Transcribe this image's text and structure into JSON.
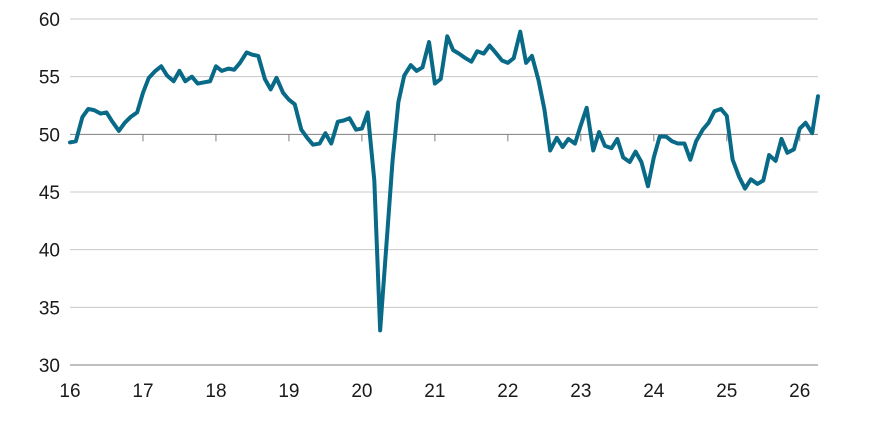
{
  "chart_data": {
    "type": "line",
    "title": "",
    "xlabel": "",
    "ylabel": "",
    "ylim": [
      30,
      60
    ],
    "xlim": [
      16,
      26.25
    ],
    "grid": "horizontal",
    "yticks": [
      30,
      35,
      40,
      45,
      50,
      55,
      60
    ],
    "xticks": [
      16,
      17,
      18,
      19,
      20,
      21,
      22,
      23,
      24,
      25,
      26
    ],
    "ytick_labels": [
      "30",
      "35",
      "40",
      "45",
      "50",
      "55",
      "60"
    ],
    "xtick_labels": [
      "16",
      "17",
      "18",
      "19",
      "20",
      "21",
      "22",
      "23",
      "24",
      "25",
      "26"
    ],
    "reference_line": 50,
    "colors": {
      "series": "#086a87",
      "grid": "#c8c8c8",
      "axis": "#7f7f7f"
    },
    "series": [
      {
        "x": [
          16.0,
          16.08,
          16.17,
          16.25,
          16.33,
          16.42,
          16.5,
          16.58,
          16.67,
          16.75,
          16.83,
          16.92,
          17.0,
          17.08,
          17.17,
          17.25,
          17.33,
          17.42,
          17.5,
          17.58,
          17.67,
          17.75,
          17.83,
          17.92,
          18.0,
          18.08,
          18.17,
          18.25,
          18.33,
          18.42,
          18.5,
          18.58,
          18.67,
          18.75,
          18.83,
          18.92,
          19.0,
          19.08,
          19.17,
          19.25,
          19.33,
          19.42,
          19.5,
          19.58,
          19.67,
          19.75,
          19.83,
          19.92,
          20.0,
          20.08,
          20.17,
          20.25,
          20.33,
          20.42,
          20.5,
          20.58,
          20.67,
          20.75,
          20.83,
          20.92,
          21.0,
          21.08,
          21.17,
          21.25,
          21.33,
          21.42,
          21.5,
          21.58,
          21.67,
          21.75,
          21.83,
          21.92,
          22.0,
          22.08,
          22.17,
          22.25,
          22.33,
          22.42,
          22.5,
          22.58,
          22.67,
          22.75,
          22.83,
          22.92,
          23.0,
          23.08,
          23.17,
          23.25,
          23.33,
          23.42,
          23.5,
          23.58,
          23.67,
          23.75,
          23.83,
          23.92,
          24.0,
          24.08,
          24.17,
          24.25,
          24.33,
          24.42,
          24.5,
          24.58,
          24.67,
          24.75,
          24.83,
          24.92,
          25.0,
          25.08,
          25.17,
          25.25,
          25.33,
          25.42,
          25.5,
          25.58,
          25.67,
          25.75,
          25.83,
          25.92,
          26.0,
          26.08,
          26.17,
          26.25
        ],
        "values": [
          49.3,
          49.4,
          51.5,
          52.2,
          52.1,
          51.8,
          51.9,
          51.1,
          50.3,
          51.0,
          51.5,
          51.9,
          53.6,
          54.9,
          55.5,
          55.9,
          55.1,
          54.6,
          55.5,
          54.6,
          55.0,
          54.4,
          54.5,
          54.6,
          55.9,
          55.5,
          55.7,
          55.6,
          56.2,
          57.1,
          56.9,
          56.8,
          54.8,
          53.9,
          54.9,
          53.6,
          53.0,
          52.6,
          50.4,
          49.7,
          49.1,
          49.2,
          50.1,
          49.2,
          51.1,
          51.2,
          51.4,
          50.4,
          50.5,
          51.9,
          46.0,
          33.0,
          39.9,
          47.7,
          52.8,
          55.1,
          56.0,
          55.5,
          55.8,
          58.0,
          54.4,
          54.8,
          58.5,
          57.3,
          57.0,
          56.6,
          56.3,
          57.2,
          57.0,
          57.7,
          57.1,
          56.4,
          56.2,
          56.6,
          58.9,
          56.2,
          56.8,
          54.7,
          52.2,
          48.6,
          49.7,
          48.9,
          49.6,
          49.2,
          50.8,
          52.3,
          48.6,
          50.2,
          49.0,
          48.8,
          49.6,
          48.0,
          47.6,
          48.5,
          47.6,
          45.5,
          48.0,
          49.8,
          49.8,
          49.4,
          49.2,
          49.2,
          47.8,
          49.4,
          50.4,
          51.0,
          52.0,
          52.2,
          51.6,
          47.8,
          46.3,
          45.3,
          46.1,
          45.7,
          46.0,
          48.2,
          47.7,
          49.6,
          48.4,
          48.7,
          50.5,
          51.0,
          50.1,
          53.3
        ]
      }
    ]
  }
}
